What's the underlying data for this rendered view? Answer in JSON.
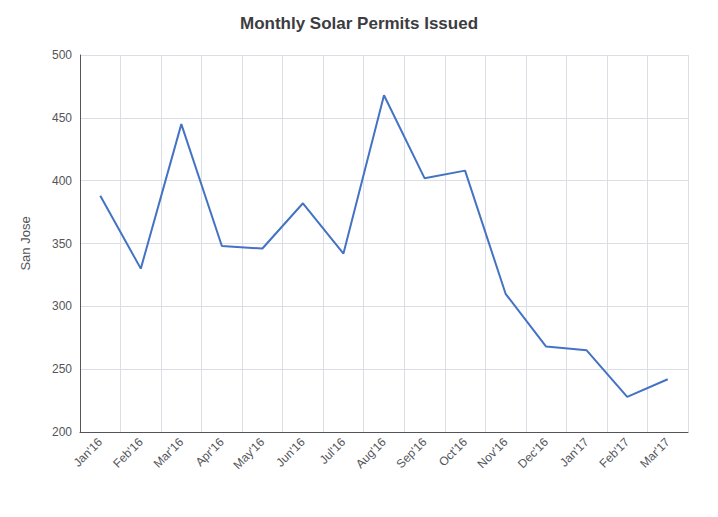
{
  "chart_data": {
    "type": "line",
    "title": "Monthly Solar Permits Issued",
    "ylabel": "San Jose",
    "categories": [
      "Jan'16",
      "Feb'16",
      "Mar'16",
      "Apr'16",
      "May'16",
      "Jun'16",
      "Jul'16",
      "Aug'16",
      "Sep'16",
      "Oct'16",
      "Nov'16",
      "Dec'16",
      "Jan'17",
      "Feb'17",
      "Mar'17"
    ],
    "values": [
      388,
      330,
      445,
      348,
      346,
      382,
      342,
      468,
      402,
      408,
      310,
      268,
      265,
      228,
      242
    ],
    "color": "#4472C4",
    "ylim": [
      200,
      500
    ],
    "yticks": [
      200,
      250,
      300,
      350,
      400,
      450,
      500
    ],
    "grid": true
  }
}
